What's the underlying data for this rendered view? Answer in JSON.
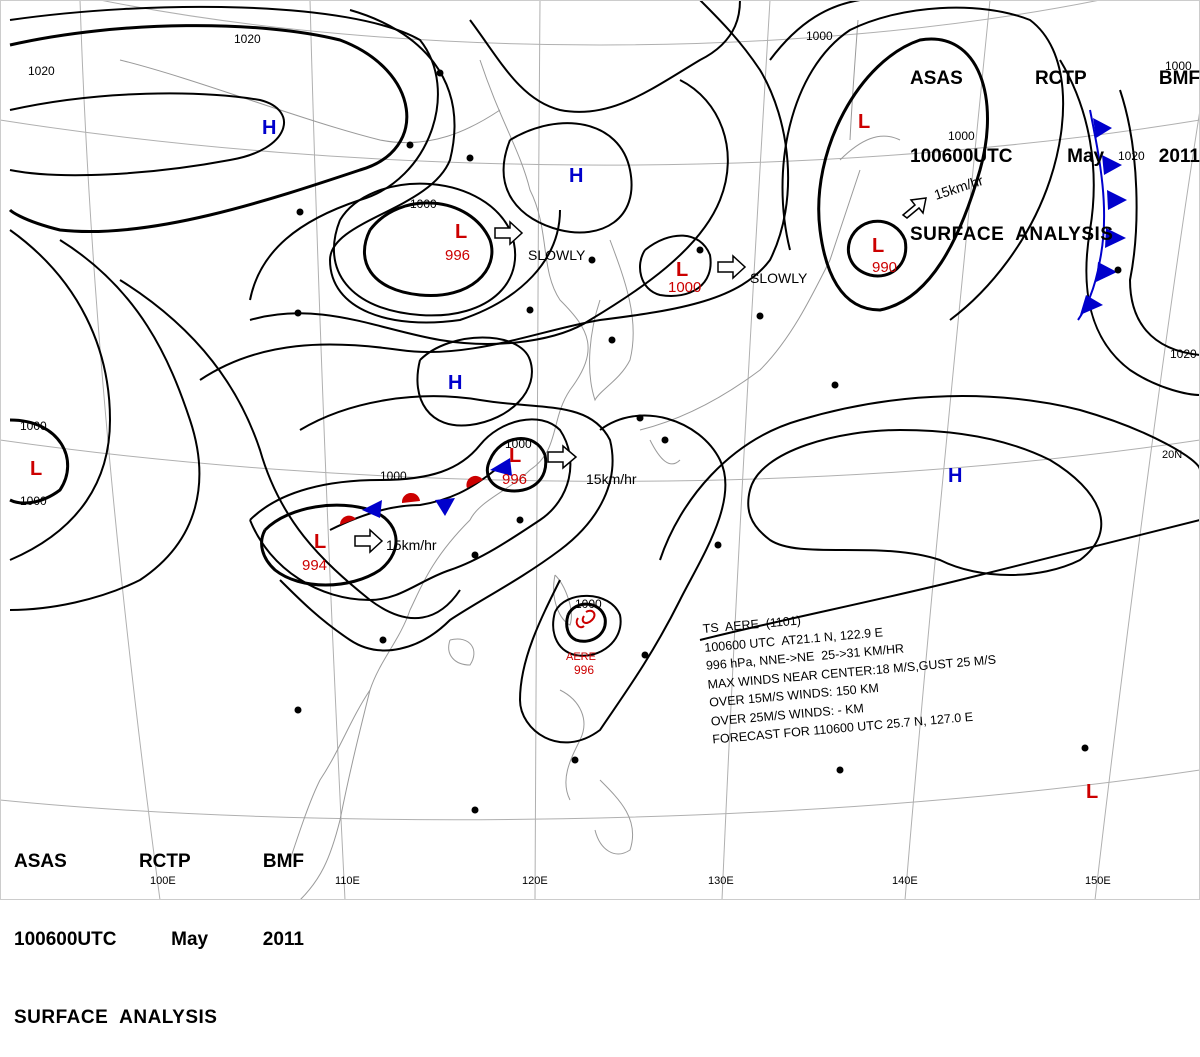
{
  "header_top": {
    "line1": [
      "ASAS",
      "RCTP",
      "BMF"
    ],
    "line2": [
      "100600UTC",
      "May",
      "2011"
    ],
    "line3": "SURFACE  ANALYSIS"
  },
  "header_bottom": {
    "line1": [
      "ASAS",
      "RCTP",
      "BMF"
    ],
    "line2": [
      "100600UTC",
      "May",
      "2011"
    ],
    "line3": "SURFACE  ANALYSIS"
  },
  "lon_labels": [
    "100E",
    "110E",
    "120E",
    "130E",
    "140E",
    "150E"
  ],
  "lat_labels": [
    "20N"
  ],
  "isobar_labels": [
    "1020",
    "1020",
    "1000",
    "1000",
    "1000",
    "1000",
    "1000",
    "1000",
    "1000",
    "1020",
    "1000",
    "1020",
    "1000"
  ],
  "pressure_centers": [
    {
      "type": "H",
      "color": "#0000cc"
    },
    {
      "type": "H",
      "color": "#0000cc"
    },
    {
      "type": "H",
      "color": "#0000cc"
    },
    {
      "type": "H",
      "color": "#0000cc"
    },
    {
      "type": "L",
      "color": "#cc0000",
      "value": "996"
    },
    {
      "type": "L",
      "color": "#cc0000",
      "value": "1000"
    },
    {
      "type": "L",
      "color": "#cc0000",
      "value": "990"
    },
    {
      "type": "L",
      "color": "#cc0000"
    },
    {
      "type": "L",
      "color": "#cc0000",
      "value": "996"
    },
    {
      "type": "L",
      "color": "#cc0000",
      "value": "994"
    },
    {
      "type": "L",
      "color": "#cc0000"
    },
    {
      "type": "L",
      "color": "#cc0000"
    }
  ],
  "movement_labels": [
    "SLOWLY",
    "SLOWLY",
    "15km/hr",
    "15km/hr",
    "15km/hr"
  ],
  "typhoon": {
    "name": "AERE",
    "pressure": "996",
    "bulletin": [
      "TS  AERE  (1101)",
      "100600 UTC  AT21.1 N, 122.9 E",
      "996 hPa, NNE->NE  25->31 KM/HR",
      "MAX WINDS NEAR CENTER:18 M/S,GUST 25 M/S",
      "OVER 15M/S WINDS: 150 KM",
      "OVER 25M/S WINDS: - KM",
      "FORECAST FOR 110600 UTC 25.7 N, 127.0 E"
    ]
  },
  "colors": {
    "high": "#0000cc",
    "low": "#cc0000",
    "cold_front": "#0000cc",
    "warm_front": "#cc0000",
    "isobar": "#000000",
    "coast": "#9a9a9a",
    "grid": "#b0b0b0"
  }
}
